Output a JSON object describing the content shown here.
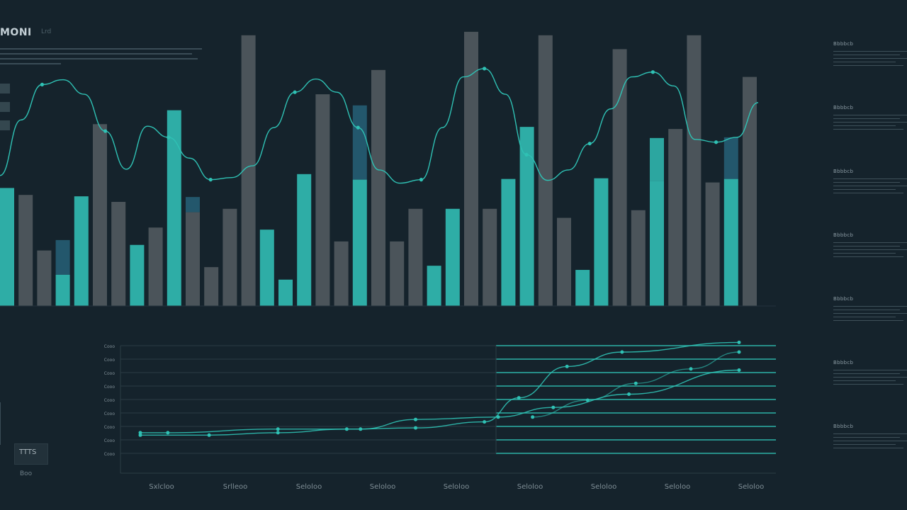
{
  "header": {
    "title": "MONI",
    "subtitle": "Lrd"
  },
  "colors": {
    "background": "#15232c",
    "teal": "#2fb5ad",
    "gray": "#5d666a",
    "dark_blue": "#255d73",
    "line": "#2fc1b4",
    "grid": "#2a3b44"
  },
  "side_panel": {
    "items": [
      {
        "label": "Bbbbcb"
      },
      {
        "label": "Bbbbcb"
      },
      {
        "label": "Bbbbcb"
      },
      {
        "label": "Bbbbcb"
      },
      {
        "label": "Bbbbcb"
      },
      {
        "label": "Bbbbcb"
      },
      {
        "label": "Bbbbcb"
      }
    ]
  },
  "corner_box": {
    "label": "TTTS",
    "sublabel": "Boo"
  },
  "chart_data": [
    {
      "type": "bar",
      "title": "",
      "ylim": [
        0,
        400
      ],
      "bars": [
        {
          "value": 170,
          "color": "teal"
        },
        {
          "value": 160,
          "color": "gray"
        },
        {
          "value": 80,
          "color": "gray"
        },
        {
          "value": 45,
          "color": "teal",
          "cap": 50,
          "cap_color": "dark_blue"
        },
        {
          "value": 158,
          "color": "teal"
        },
        {
          "value": 262,
          "color": "gray"
        },
        {
          "value": 150,
          "color": "gray"
        },
        {
          "value": 88,
          "color": "teal"
        },
        {
          "value": 113,
          "color": "gray"
        },
        {
          "value": 282,
          "color": "teal"
        },
        {
          "value": 135,
          "color": "gray",
          "cap": 22,
          "cap_color": "dark_blue"
        },
        {
          "value": 56,
          "color": "gray"
        },
        {
          "value": 140,
          "color": "gray"
        },
        {
          "value": 390,
          "color": "gray"
        },
        {
          "value": 110,
          "color": "teal"
        },
        {
          "value": 38,
          "color": "teal"
        },
        {
          "value": 190,
          "color": "teal"
        },
        {
          "value": 305,
          "color": "gray"
        },
        {
          "value": 93,
          "color": "gray"
        },
        {
          "value": 182,
          "color": "teal",
          "cap": 107,
          "cap_color": "dark_blue"
        },
        {
          "value": 340,
          "color": "gray"
        },
        {
          "value": 93,
          "color": "gray"
        },
        {
          "value": 140,
          "color": "gray"
        },
        {
          "value": 58,
          "color": "teal"
        },
        {
          "value": 140,
          "color": "teal"
        },
        {
          "value": 395,
          "color": "gray"
        },
        {
          "value": 140,
          "color": "gray"
        },
        {
          "value": 183,
          "color": "teal"
        },
        {
          "value": 258,
          "color": "teal"
        },
        {
          "value": 390,
          "color": "gray"
        },
        {
          "value": 127,
          "color": "gray"
        },
        {
          "value": 52,
          "color": "teal"
        },
        {
          "value": 184,
          "color": "teal"
        },
        {
          "value": 370,
          "color": "gray"
        },
        {
          "value": 138,
          "color": "gray"
        },
        {
          "value": 180,
          "color": "teal",
          "cap": 62,
          "cap_color": "teal"
        },
        {
          "value": 255,
          "color": "gray"
        },
        {
          "value": 390,
          "color": "gray"
        },
        {
          "value": 178,
          "color": "gray"
        },
        {
          "value": 183,
          "color": "teal",
          "cap": 60,
          "cap_color": "dark_blue"
        },
        {
          "value": 330,
          "color": "gray"
        }
      ],
      "overlay_line": {
        "values": [
          188,
          268,
          319,
          326,
          305,
          252,
          197,
          259,
          243,
          213,
          182,
          185,
          202,
          257,
          308,
          327,
          308,
          257,
          196,
          177,
          182,
          257,
          330,
          342,
          305,
          218,
          181,
          196,
          234,
          284,
          330,
          337,
          317,
          240,
          236,
          243,
          293
        ],
        "marked_points": [
          2,
          7,
          11,
          14,
          20,
          22,
          27,
          30,
          33,
          38,
          41,
          44,
          52,
          56,
          63,
          75,
          80,
          82,
          91,
          104,
          114
        ]
      }
    },
    {
      "type": "line",
      "title": "",
      "xlabel": "",
      "ylabel": "",
      "x_tick_labels": [
        "Sxlcloo",
        "Srlleoo",
        "Seloloo",
        "Seloloo",
        "Seloloo",
        "Seloloo",
        "Seloloo",
        "Seloloo",
        "Seloloo"
      ],
      "y_tick_labels": [
        "Cooo",
        "Cooo",
        "Cooo",
        "Cooo",
        "Cooo",
        "Cooo",
        "Cooo",
        "Cooo",
        "Cooo",
        "Cooo"
      ],
      "ylim": [
        0,
        10
      ],
      "series": [
        {
          "x": [
            0,
            0.4,
            2,
            3.2,
            4,
            5.2,
            6,
            7.1,
            8.7
          ],
          "y": [
            2.3,
            2.3,
            2.6,
            2.6,
            3.4,
            3.6,
            4.4,
            5.5,
            7.5
          ]
        },
        {
          "x": [
            0,
            1,
            2,
            3,
            4,
            5,
            5.5,
            6.2,
            7,
            8.7
          ],
          "y": [
            2.1,
            2.1,
            2.3,
            2.6,
            2.7,
            3.2,
            5.2,
            7.8,
            9.0,
            9.8
          ]
        },
        {
          "x": [
            5.7,
            6.5,
            7.2,
            8.0,
            8.7
          ],
          "y": [
            3.6,
            5.0,
            6.4,
            7.6,
            9.0
          ]
        }
      ]
    }
  ]
}
